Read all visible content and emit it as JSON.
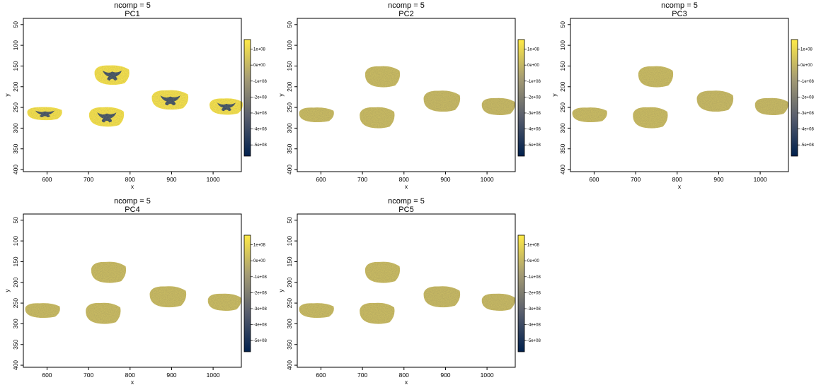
{
  "chart_data": [
    {
      "type": "heatmap",
      "title": "ncomp = 5",
      "subtitle": "PC1",
      "xlabel": "x",
      "ylabel": "y",
      "xlim": [
        543,
        1068
      ],
      "ylim": [
        405,
        35
      ],
      "x_ticks": [
        "600",
        "700",
        "800",
        "900",
        "1000"
      ],
      "y_ticks": [
        "50",
        "100",
        "150",
        "200",
        "250",
        "300",
        "350",
        "400"
      ],
      "colorbar": {
        "ticks": [
          "1e+08",
          "0e+00",
          "-1e+08",
          "-2e+08",
          "-3e+08",
          "-4e+08",
          "-5e+08"
        ],
        "min": -570000000.0,
        "max": 160000000.0,
        "colors": [
          "#00204d",
          "#575d6d",
          "#a59c74",
          "#ffea46"
        ]
      },
      "grid": false,
      "sections": [
        {
          "cx": 595,
          "cy": 265,
          "rx": 42,
          "ry": 16,
          "value": 130000000.0,
          "core": true
        },
        {
          "cx": 757,
          "cy": 172,
          "rx": 42,
          "ry": 24,
          "value": 130000000.0,
          "core": true
        },
        {
          "cx": 744,
          "cy": 273,
          "rx": 42,
          "ry": 24,
          "value": 130000000.0,
          "core": true
        },
        {
          "cx": 897,
          "cy": 232,
          "rx": 44,
          "ry": 24,
          "value": 130000000.0,
          "core": true
        },
        {
          "cx": 1032,
          "cy": 248,
          "rx": 40,
          "ry": 20,
          "value": 130000000.0,
          "core": true
        }
      ]
    },
    {
      "type": "heatmap",
      "title": "ncomp = 5",
      "subtitle": "PC2",
      "xlabel": "x",
      "ylabel": "y",
      "xlim": [
        543,
        1068
      ],
      "ylim": [
        405,
        35
      ],
      "x_ticks": [
        "600",
        "700",
        "800",
        "900",
        "1000"
      ],
      "y_ticks": [
        "50",
        "100",
        "150",
        "200",
        "250",
        "300",
        "350",
        "400"
      ],
      "colorbar": {
        "ticks": [
          "1e+08",
          "0e+00",
          "-1e+08",
          "-2e+08",
          "-3e+08",
          "-4e+08",
          "-5e+08"
        ],
        "min": -570000000.0,
        "max": 160000000.0,
        "colors": [
          "#00204d",
          "#575d6d",
          "#a59c74",
          "#ffea46"
        ]
      },
      "grid": false,
      "sections": [
        {
          "cx": 590,
          "cy": 268,
          "rx": 42,
          "ry": 18,
          "value": 10000000.0,
          "core": false
        },
        {
          "cx": 749,
          "cy": 176,
          "rx": 42,
          "ry": 26,
          "value": 10000000.0,
          "core": false
        },
        {
          "cx": 736,
          "cy": 275,
          "rx": 42,
          "ry": 26,
          "value": 10000000.0,
          "core": false
        },
        {
          "cx": 892,
          "cy": 235,
          "rx": 44,
          "ry": 26,
          "value": 5000000.0,
          "core": false
        },
        {
          "cx": 1028,
          "cy": 248,
          "rx": 40,
          "ry": 21,
          "value": 5000000.0,
          "core": false
        }
      ]
    },
    {
      "type": "heatmap",
      "title": "ncomp = 5",
      "subtitle": "PC3",
      "xlabel": "x",
      "ylabel": "y",
      "xlim": [
        543,
        1068
      ],
      "ylim": [
        405,
        35
      ],
      "x_ticks": [
        "600",
        "700",
        "800",
        "900",
        "1000"
      ],
      "y_ticks": [
        "50",
        "100",
        "150",
        "200",
        "250",
        "300",
        "350",
        "400"
      ],
      "colorbar": {
        "ticks": [
          "1e+08",
          "0e+00",
          "-1e+08",
          "-2e+08",
          "-3e+08",
          "-4e+08",
          "-5e+08"
        ],
        "min": -570000000.0,
        "max": 160000000.0,
        "colors": [
          "#00204d",
          "#575d6d",
          "#a59c74",
          "#ffea46"
        ]
      },
      "grid": false,
      "sections": [
        {
          "cx": 590,
          "cy": 268,
          "rx": 42,
          "ry": 18,
          "value": 10000000.0,
          "core": false
        },
        {
          "cx": 749,
          "cy": 176,
          "rx": 42,
          "ry": 26,
          "value": 10000000.0,
          "core": false
        },
        {
          "cx": 736,
          "cy": 275,
          "rx": 42,
          "ry": 26,
          "value": 10000000.0,
          "core": false
        },
        {
          "cx": 892,
          "cy": 235,
          "rx": 44,
          "ry": 26,
          "value": 5000000.0,
          "core": false
        },
        {
          "cx": 1028,
          "cy": 248,
          "rx": 40,
          "ry": 21,
          "value": 5000000.0,
          "core": false
        }
      ]
    },
    {
      "type": "heatmap",
      "title": "ncomp = 5",
      "subtitle": "PC4",
      "xlabel": "x",
      "ylabel": "y",
      "xlim": [
        543,
        1068
      ],
      "ylim": [
        405,
        35
      ],
      "x_ticks": [
        "600",
        "700",
        "800",
        "900",
        "1000"
      ],
      "y_ticks": [
        "50",
        "100",
        "150",
        "200",
        "250",
        "300",
        "350",
        "400"
      ],
      "colorbar": {
        "ticks": [
          "1e+08",
          "0e+00",
          "-1e+08",
          "-2e+08",
          "-3e+08",
          "-4e+08",
          "-5e+08"
        ],
        "min": -570000000.0,
        "max": 160000000.0,
        "colors": [
          "#00204d",
          "#575d6d",
          "#a59c74",
          "#ffea46"
        ]
      },
      "grid": false,
      "sections": [
        {
          "cx": 590,
          "cy": 268,
          "rx": 42,
          "ry": 18,
          "value": 10000000.0,
          "core": false
        },
        {
          "cx": 749,
          "cy": 176,
          "rx": 42,
          "ry": 26,
          "value": 10000000.0,
          "core": false
        },
        {
          "cx": 736,
          "cy": 275,
          "rx": 42,
          "ry": 26,
          "value": 10000000.0,
          "core": false
        },
        {
          "cx": 892,
          "cy": 235,
          "rx": 44,
          "ry": 26,
          "value": 10000000.0,
          "core": false
        },
        {
          "cx": 1028,
          "cy": 248,
          "rx": 40,
          "ry": 21,
          "value": 10000000.0,
          "core": false
        }
      ]
    },
    {
      "type": "heatmap",
      "title": "ncomp = 5",
      "subtitle": "PC5",
      "xlabel": "x",
      "ylabel": "y",
      "xlim": [
        543,
        1068
      ],
      "ylim": [
        405,
        35
      ],
      "x_ticks": [
        "600",
        "700",
        "800",
        "900",
        "1000"
      ],
      "y_ticks": [
        "50",
        "100",
        "150",
        "200",
        "250",
        "300",
        "350",
        "400"
      ],
      "colorbar": {
        "ticks": [
          "1e+08",
          "0e+00",
          "-1e+08",
          "-2e+08",
          "-3e+08",
          "-4e+08",
          "-5e+08"
        ],
        "min": -570000000.0,
        "max": 160000000.0,
        "colors": [
          "#00204d",
          "#575d6d",
          "#a59c74",
          "#ffea46"
        ]
      },
      "grid": false,
      "sections": [
        {
          "cx": 590,
          "cy": 268,
          "rx": 42,
          "ry": 18,
          "value": 10000000.0,
          "core": false
        },
        {
          "cx": 749,
          "cy": 176,
          "rx": 42,
          "ry": 26,
          "value": 10000000.0,
          "core": false
        },
        {
          "cx": 736,
          "cy": 275,
          "rx": 42,
          "ry": 26,
          "value": 10000000.0,
          "core": false
        },
        {
          "cx": 892,
          "cy": 235,
          "rx": 44,
          "ry": 26,
          "value": 5000000.0,
          "core": false
        },
        {
          "cx": 1028,
          "cy": 248,
          "rx": 40,
          "ry": 21,
          "value": 5000000.0,
          "core": false
        }
      ]
    }
  ]
}
